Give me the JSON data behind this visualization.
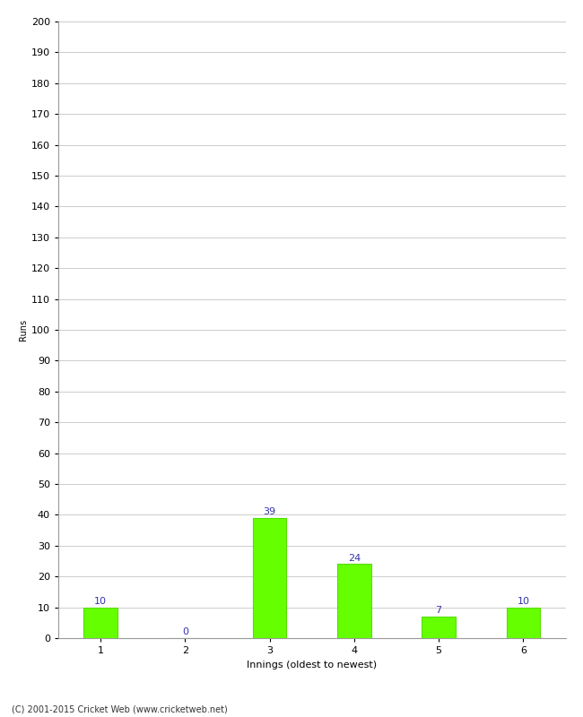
{
  "xlabel": "Innings (oldest to newest)",
  "ylabel": "Runs",
  "categories": [
    "1",
    "2",
    "3",
    "4",
    "5",
    "6"
  ],
  "values": [
    10,
    0,
    39,
    24,
    7,
    10
  ],
  "bar_color": "#66ff00",
  "bar_edge_color": "#55dd00",
  "label_color": "#3333aa",
  "ylim": [
    0,
    200
  ],
  "yticks": [
    0,
    10,
    20,
    30,
    40,
    50,
    60,
    70,
    80,
    90,
    100,
    110,
    120,
    130,
    140,
    150,
    160,
    170,
    180,
    190,
    200
  ],
  "footnote": "(C) 2001-2015 Cricket Web (www.cricketweb.net)",
  "background_color": "#ffffff",
  "grid_color": "#cccccc",
  "label_fontsize": 8,
  "axis_fontsize": 8,
  "ylabel_fontsize": 7,
  "bar_width": 0.4
}
